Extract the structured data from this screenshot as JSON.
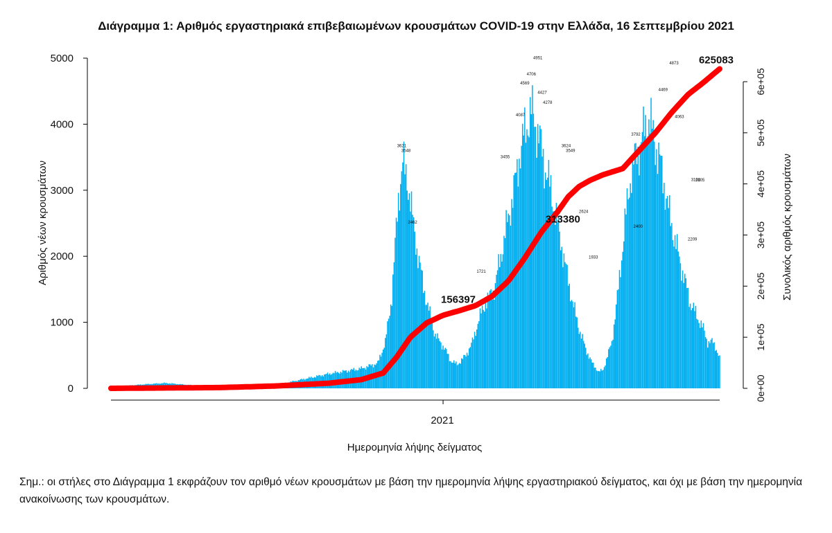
{
  "chart_data": {
    "type": "bar",
    "title": "Διάγραμμα 1: Αριθμός εργαστηριακά επιβεβαιωμένων κρουσμάτων COVID-19 στην Ελλάδα, 16 Σεπτεμβρίου 2021",
    "xlabel": "Ημερομηνία λήψης δείγματος",
    "ylabel": "Αριθμός νέων κρουσμάτων",
    "y2label": "Συνολικός αριθμός κρουσμάτων",
    "x_tick_label": "2021",
    "ylim": [
      0,
      5000
    ],
    "y2lim": [
      0,
      600000
    ],
    "yticks": [
      0,
      1000,
      2000,
      3000,
      4000,
      5000
    ],
    "y2ticks": [
      "0e+00",
      "1e+05",
      "2e+05",
      "3e+05",
      "4e+05",
      "5e+05",
      "6e+05"
    ],
    "y2tick_values": [
      0,
      100000,
      200000,
      300000,
      400000,
      500000,
      600000
    ],
    "grid": false,
    "bar_color": "#00AEEF",
    "line_color": "#FF0000",
    "days": 560,
    "year_tick_day": 305,
    "series": [
      {
        "kind": "bar",
        "daily_new_cases_knots": [
          [
            0,
            20
          ],
          [
            30,
            60
          ],
          [
            50,
            80
          ],
          [
            80,
            40
          ],
          [
            150,
            40
          ],
          [
            160,
            80
          ],
          [
            200,
            220
          ],
          [
            230,
            300
          ],
          [
            245,
            380
          ],
          [
            252,
            700
          ],
          [
            258,
            1400
          ],
          [
            264,
            2900
          ],
          [
            268,
            3400
          ],
          [
            272,
            3200
          ],
          [
            276,
            2700
          ],
          [
            282,
            2000
          ],
          [
            290,
            1300
          ],
          [
            298,
            800
          ],
          [
            306,
            620
          ],
          [
            312,
            420
          ],
          [
            318,
            360
          ],
          [
            326,
            500
          ],
          [
            332,
            700
          ],
          [
            338,
            1050
          ],
          [
            344,
            1300
          ],
          [
            352,
            1500
          ],
          [
            358,
            2000
          ],
          [
            364,
            2500
          ],
          [
            370,
            3000
          ],
          [
            376,
            3600
          ],
          [
            382,
            4000
          ],
          [
            386,
            4200
          ],
          [
            392,
            3900
          ],
          [
            398,
            3400
          ],
          [
            404,
            3000
          ],
          [
            410,
            2500
          ],
          [
            418,
            1800
          ],
          [
            424,
            1300
          ],
          [
            430,
            900
          ],
          [
            436,
            600
          ],
          [
            442,
            380
          ],
          [
            448,
            250
          ],
          [
            452,
            280
          ],
          [
            460,
            700
          ],
          [
            466,
            1500
          ],
          [
            472,
            2500
          ],
          [
            478,
            3300
          ],
          [
            484,
            3600
          ],
          [
            490,
            3900
          ],
          [
            494,
            4100
          ],
          [
            500,
            3700
          ],
          [
            506,
            3300
          ],
          [
            512,
            2700
          ],
          [
            516,
            2400
          ],
          [
            520,
            2100
          ],
          [
            526,
            1700
          ],
          [
            532,
            1300
          ],
          [
            538,
            1100
          ],
          [
            544,
            900
          ],
          [
            548,
            700
          ],
          [
            553,
            700
          ],
          [
            556,
            600
          ],
          [
            559,
            450
          ]
        ]
      },
      {
        "kind": "line",
        "cumulative_cases_knots": [
          [
            0,
            0
          ],
          [
            100,
            1500
          ],
          [
            150,
            4500
          ],
          [
            200,
            10000
          ],
          [
            230,
            17000
          ],
          [
            250,
            30000
          ],
          [
            262,
            60000
          ],
          [
            275,
            100000
          ],
          [
            290,
            128000
          ],
          [
            305,
            143000
          ],
          [
            320,
            152000
          ],
          [
            335,
            162000
          ],
          [
            350,
            180000
          ],
          [
            365,
            210000
          ],
          [
            380,
            255000
          ],
          [
            395,
            305000
          ],
          [
            410,
            345000
          ],
          [
            420,
            375000
          ],
          [
            430,
            395000
          ],
          [
            440,
            407000
          ],
          [
            452,
            418000
          ],
          [
            470,
            430000
          ],
          [
            485,
            465000
          ],
          [
            500,
            500000
          ],
          [
            515,
            540000
          ],
          [
            530,
            575000
          ],
          [
            545,
            600000
          ],
          [
            559,
            625083
          ]
        ]
      }
    ],
    "annotations": {
      "cumulative_labels": [
        {
          "day": 319,
          "value": 156397,
          "text": "156397"
        },
        {
          "day": 415,
          "value": 313380,
          "text": "313380"
        },
        {
          "day": 559,
          "value": 625083,
          "text": "625083"
        }
      ],
      "peak_labels": [
        {
          "day": 267,
          "value": 3621,
          "text": "3621"
        },
        {
          "day": 271,
          "value": 3548,
          "text": "3548"
        },
        {
          "day": 277,
          "value": 2462,
          "text": "2462"
        },
        {
          "day": 340,
          "value": 1721,
          "text": "1721"
        },
        {
          "day": 362,
          "value": 3455,
          "text": "3455"
        },
        {
          "day": 376,
          "value": 4087,
          "text": "4087"
        },
        {
          "day": 380,
          "value": 4569,
          "text": "4569"
        },
        {
          "day": 386,
          "value": 4706,
          "text": "4706"
        },
        {
          "day": 392,
          "value": 4951,
          "text": "4951"
        },
        {
          "day": 396,
          "value": 4427,
          "text": "4427"
        },
        {
          "day": 401,
          "value": 4278,
          "text": "4278"
        },
        {
          "day": 418,
          "value": 3624,
          "text": "3624"
        },
        {
          "day": 422,
          "value": 3549,
          "text": "3549"
        },
        {
          "day": 434,
          "value": 2624,
          "text": "2624"
        },
        {
          "day": 443,
          "value": 1933,
          "text": "1933"
        },
        {
          "day": 482,
          "value": 3792,
          "text": "3792"
        },
        {
          "day": 484,
          "value": 2400,
          "text": "2400"
        },
        {
          "day": 507,
          "value": 4469,
          "text": "4469"
        },
        {
          "day": 517,
          "value": 4873,
          "text": "4873"
        },
        {
          "day": 522,
          "value": 4063,
          "text": "4063"
        },
        {
          "day": 537,
          "value": 3108,
          "text": "3108"
        },
        {
          "day": 541,
          "value": 3105,
          "text": "3105"
        },
        {
          "day": 534,
          "value": 2209,
          "text": "2209"
        }
      ]
    }
  },
  "note": {
    "text": "Σημ.: οι στήλες στο Διάγραμμα 1 εκφράζουν τον αριθμό νέων κρουσμάτων με βάση την ημερομηνία λήψης εργαστηριακού δείγματος, και όχι με βάση την ημερομηνία ανακοίνωσης των κρουσμάτων."
  }
}
